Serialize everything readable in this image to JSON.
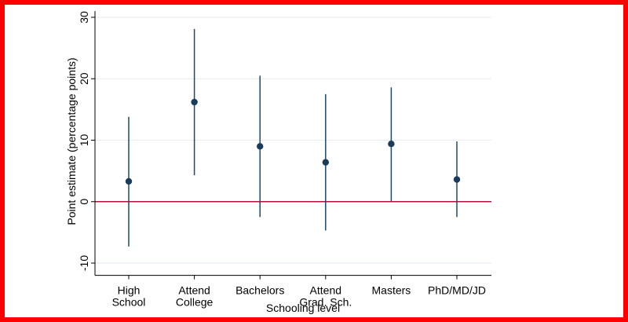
{
  "chart_data": {
    "type": "errorbar",
    "xlabel": "Schooling level",
    "ylabel": "Point estimate (percentage points)",
    "ylim": [
      -12,
      31
    ],
    "yticks": [
      -10,
      0,
      10,
      20,
      30
    ],
    "grid": true,
    "reference_line": {
      "value": 0,
      "color": "#b0103a"
    },
    "colors": {
      "point": "#1a3c5a",
      "bar": "#1a4a6e",
      "grid": "#e6ecf0",
      "frame": "#ff0000"
    },
    "categories": [
      {
        "lines": [
          "High",
          "School"
        ],
        "estimate": 3.3,
        "lower": -7.3,
        "upper": 13.8
      },
      {
        "lines": [
          "Attend",
          "College"
        ],
        "estimate": 16.2,
        "lower": 4.3,
        "upper": 28.1
      },
      {
        "lines": [
          "Bachelors"
        ],
        "estimate": 9.0,
        "lower": -2.5,
        "upper": 20.5
      },
      {
        "lines": [
          "Attend",
          "Grad. Sch."
        ],
        "estimate": 6.4,
        "lower": -4.7,
        "upper": 17.5
      },
      {
        "lines": [
          "Masters"
        ],
        "estimate": 9.4,
        "lower": 0.1,
        "upper": 18.6
      },
      {
        "lines": [
          "PhD/MD/JD"
        ],
        "estimate": 3.6,
        "lower": -2.5,
        "upper": 9.8
      }
    ]
  }
}
